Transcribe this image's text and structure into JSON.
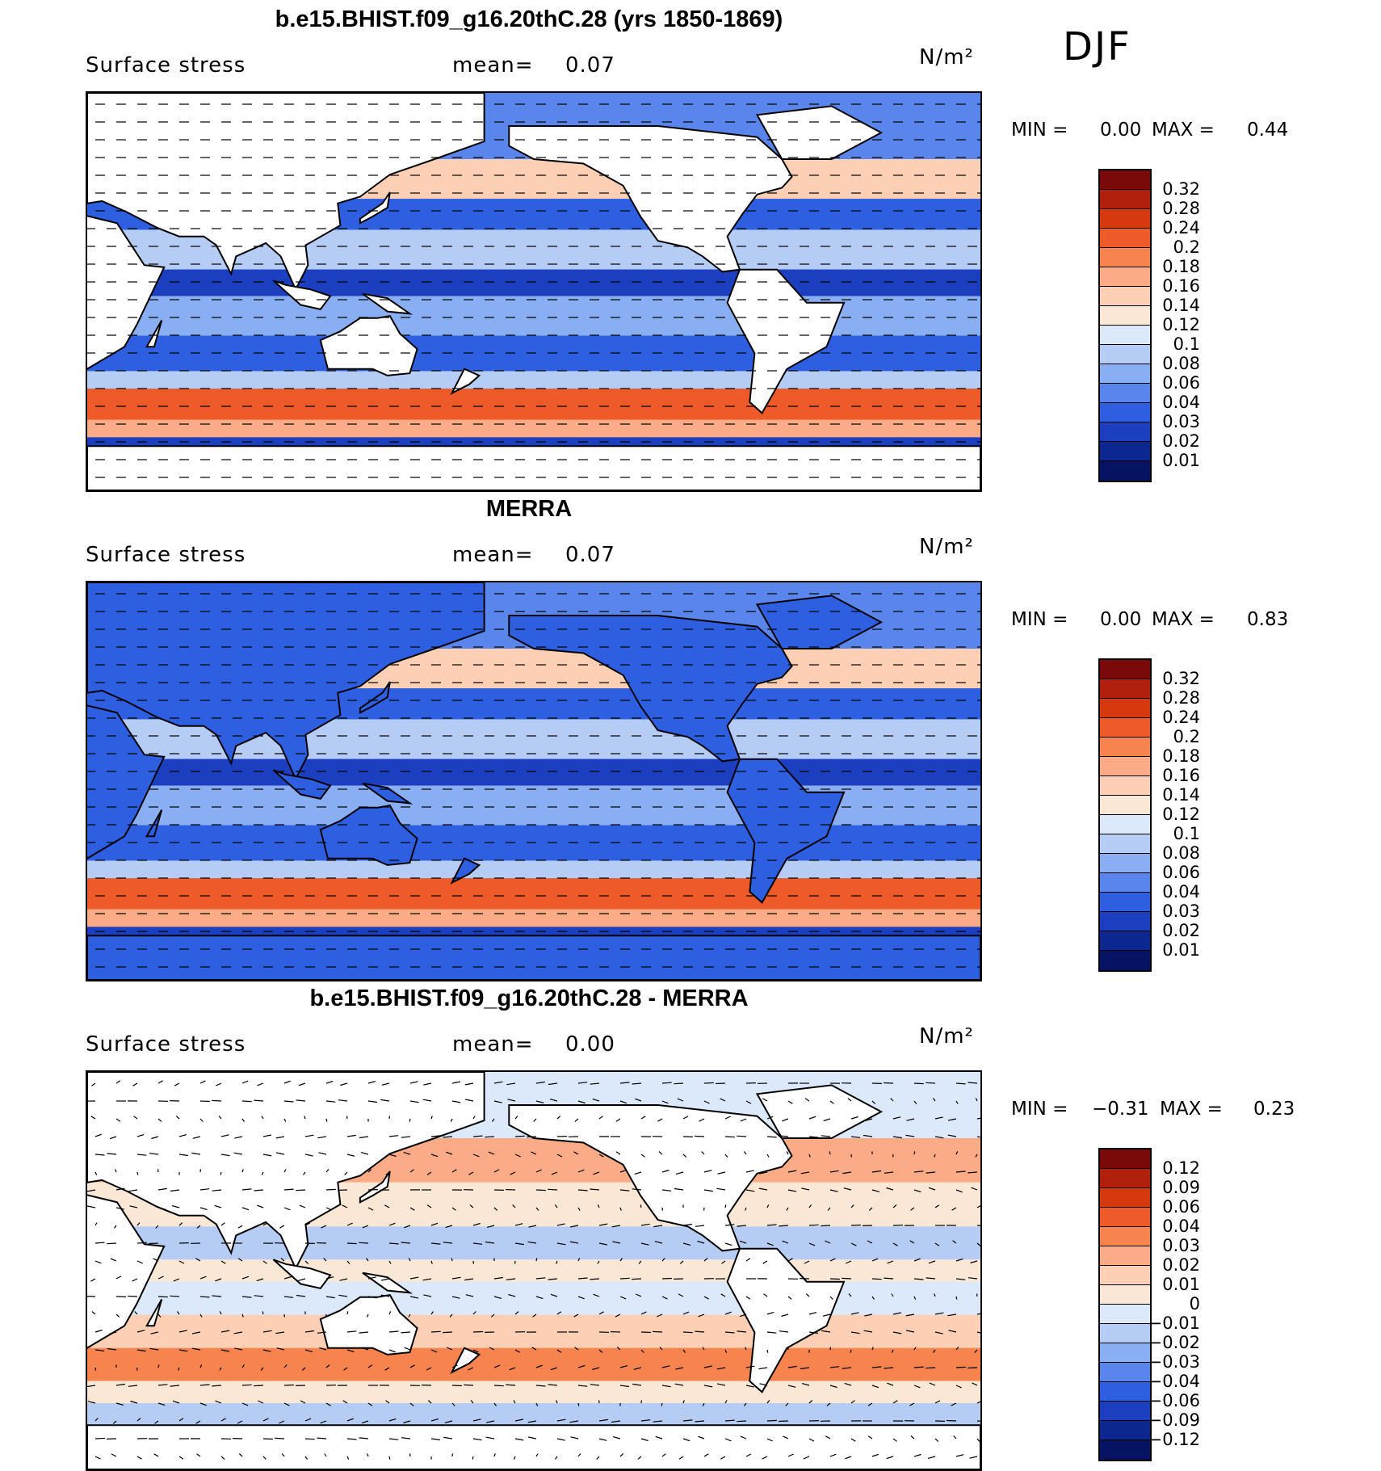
{
  "season": "DJF",
  "panels": [
    {
      "title": "b.e15.BHIST.f09_g16.20thC.28 (yrs 1850-1869)",
      "variable": "Surface stress",
      "mean_label": "mean=",
      "mean_value": "0.07",
      "units": "N/m²",
      "min_label": "MIN =",
      "min_value": "0.00",
      "max_label": "MAX =",
      "max_value": "0.44",
      "colorbar_ticks": [
        "0.32",
        "0.28",
        "0.24",
        "0.2",
        "0.18",
        "0.16",
        "0.14",
        "0.12",
        "0.1",
        "0.08",
        "0.06",
        "0.04",
        "0.03",
        "0.02",
        "0.01"
      ],
      "colors": [
        "#7a0a0a",
        "#b0200c",
        "#d7390f",
        "#ee5a28",
        "#f7834f",
        "#fbab85",
        "#fdd0b5",
        "#fbe7d5",
        "#dbe9fb",
        "#b5cdf5",
        "#8aaef2",
        "#5a86ec",
        "#2d5fe0",
        "#1b3fbf",
        "#0c2890",
        "#051363"
      ],
      "field_type": "model"
    },
    {
      "title": "MERRA",
      "variable": "Surface stress",
      "mean_label": "mean=",
      "mean_value": "0.07",
      "units": "N/m²",
      "min_label": "MIN =",
      "min_value": "0.00",
      "max_label": "MAX =",
      "max_value": "0.83",
      "colorbar_ticks": [
        "0.32",
        "0.28",
        "0.24",
        "0.2",
        "0.18",
        "0.16",
        "0.14",
        "0.12",
        "0.1",
        "0.08",
        "0.06",
        "0.04",
        "0.03",
        "0.02",
        "0.01"
      ],
      "colors": [
        "#7a0a0a",
        "#b0200c",
        "#d7390f",
        "#ee5a28",
        "#f7834f",
        "#fbab85",
        "#fdd0b5",
        "#fbe7d5",
        "#dbe9fb",
        "#b5cdf5",
        "#8aaef2",
        "#5a86ec",
        "#2d5fe0",
        "#1b3fbf",
        "#0c2890",
        "#051363"
      ],
      "field_type": "obs"
    },
    {
      "title": "b.e15.BHIST.f09_g16.20thC.28 - MERRA",
      "variable": "Surface stress",
      "mean_label": "mean=",
      "mean_value": "0.00",
      "units": "N/m²",
      "min_label": "MIN =",
      "min_value": "−0.31",
      "max_label": "MAX =",
      "max_value": "0.23",
      "colorbar_ticks": [
        "0.12",
        "0.09",
        "0.06",
        "0.04",
        "0.03",
        "0.02",
        "0.01",
        "0",
        "−0.01",
        "−0.02",
        "−0.03",
        "−0.04",
        "−0.06",
        "−0.09",
        "−0.12"
      ],
      "colors": [
        "#7a0a0a",
        "#b0200c",
        "#d7390f",
        "#ee5a28",
        "#f7834f",
        "#fbab85",
        "#fdd0b5",
        "#fbe7d5",
        "#dbe9fb",
        "#b5cdf5",
        "#8aaef2",
        "#5a86ec",
        "#2d5fe0",
        "#1b3fbf",
        "#0c2890",
        "#051363"
      ],
      "field_type": "diff"
    }
  ]
}
